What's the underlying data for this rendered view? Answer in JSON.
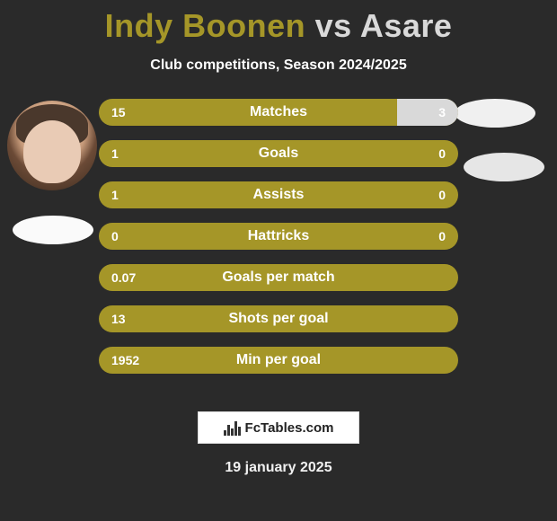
{
  "title": {
    "player_a": "Indy Boonen",
    "vs": "vs",
    "player_b": "Asare",
    "color_a": "#a59628",
    "color_b": "#d9d9d9",
    "fontsize": 36
  },
  "subtitle": "Club competitions, Season 2024/2025",
  "colors": {
    "background": "#2a2a2a",
    "bar_primary": "#a59628",
    "bar_secondary": "#d9d9d9",
    "text": "#ffffff"
  },
  "rows": [
    {
      "label": "Matches",
      "left": "15",
      "right": "3",
      "right_pct": 17,
      "right_color": "#d9d9d9"
    },
    {
      "label": "Goals",
      "left": "1",
      "right": "0",
      "right_pct": 0,
      "right_color": null
    },
    {
      "label": "Assists",
      "left": "1",
      "right": "0",
      "right_pct": 0,
      "right_color": null
    },
    {
      "label": "Hattricks",
      "left": "0",
      "right": "0",
      "right_pct": 0,
      "right_color": null
    },
    {
      "label": "Goals per match",
      "left": "0.07",
      "right": "",
      "right_pct": 0,
      "right_color": null
    },
    {
      "label": "Shots per goal",
      "left": "13",
      "right": "",
      "right_pct": 0,
      "right_color": null
    },
    {
      "label": "Min per goal",
      "left": "1952",
      "right": "",
      "right_pct": 0,
      "right_color": null
    }
  ],
  "footer": {
    "brand": "FcTables.com",
    "date": "19 january 2025"
  }
}
